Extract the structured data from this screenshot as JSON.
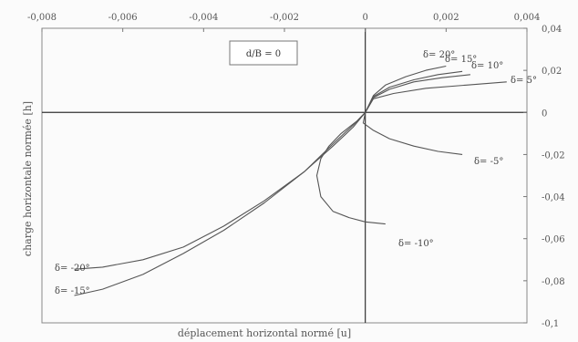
{
  "chart_data": {
    "type": "line",
    "title": "",
    "xlabel": "déplacement horizontal normé [u]",
    "ylabel": "charge horizontale normée [h]",
    "xlim": [
      -0.008,
      0.004
    ],
    "ylim": [
      -0.1,
      0.04
    ],
    "x_ticks": [
      "-0,008",
      "-0,006",
      "-0,004",
      "-0,002",
      "0",
      "0,002",
      "0,004"
    ],
    "y_ticks": [
      "0,04",
      "0,02",
      "0",
      "-0,02",
      "-0,04",
      "-0,06",
      "-0,08",
      "-0,1"
    ],
    "x_tick_values": [
      -0.008,
      -0.006,
      -0.004,
      -0.002,
      0,
      0.002,
      0.004
    ],
    "y_tick_values": [
      0.04,
      0.02,
      0,
      -0.02,
      -0.04,
      -0.06,
      -0.08,
      -0.1
    ],
    "x_axis_position": "top",
    "y_axis_position": "right",
    "grid": false,
    "annotation": "d/B = 0",
    "series": [
      {
        "name": "δ= 20°",
        "x": [
          0,
          0.0002,
          0.0005,
          0.001,
          0.0015,
          0.002
        ],
        "y": [
          0,
          0.008,
          0.013,
          0.017,
          0.02,
          0.022
        ]
      },
      {
        "name": "δ= 15°",
        "x": [
          0,
          0.0002,
          0.0006,
          0.0012,
          0.0018,
          0.0024
        ],
        "y": [
          0,
          0.0075,
          0.012,
          0.0155,
          0.018,
          0.0195
        ]
      },
      {
        "name": "δ= 10°",
        "x": [
          0,
          0.0002,
          0.0006,
          0.0012,
          0.0019,
          0.0026
        ],
        "y": [
          0,
          0.007,
          0.011,
          0.0145,
          0.0165,
          0.018
        ]
      },
      {
        "name": "δ= 5°",
        "x": [
          0,
          0.0002,
          0.0007,
          0.0015,
          0.0025,
          0.0035
        ],
        "y": [
          0,
          0.0065,
          0.009,
          0.0115,
          0.013,
          0.0145
        ]
      },
      {
        "name": "δ= -5°",
        "x": [
          0,
          -5e-05,
          0.0002,
          0.0006,
          0.0012,
          0.0018,
          0.0024
        ],
        "y": [
          0,
          -0.005,
          -0.0085,
          -0.0125,
          -0.016,
          -0.0185,
          -0.02
        ]
      },
      {
        "name": "δ= -10°",
        "x": [
          0,
          -0.0002,
          -0.0006,
          -0.0009,
          -0.0011,
          -0.0012,
          -0.0011,
          -0.0008,
          -0.0004,
          0,
          0.0005
        ],
        "y": [
          0,
          -0.004,
          -0.01,
          -0.016,
          -0.022,
          -0.03,
          -0.04,
          -0.047,
          -0.05,
          -0.052,
          -0.053
        ]
      },
      {
        "name": "δ= -20°",
        "x": [
          0,
          -0.0003,
          -0.0008,
          -0.0015,
          -0.0025,
          -0.0035,
          -0.0045,
          -0.0055,
          -0.0065,
          -0.0072
        ],
        "y": [
          0,
          -0.007,
          -0.016,
          -0.028,
          -0.042,
          -0.054,
          -0.064,
          -0.07,
          -0.0735,
          -0.0745
        ]
      },
      {
        "name": "δ= -15°",
        "x": [
          0,
          -0.0003,
          -0.0008,
          -0.0015,
          -0.0025,
          -0.0035,
          -0.0045,
          -0.0055,
          -0.0065,
          -0.0072
        ],
        "y": [
          0,
          -0.006,
          -0.015,
          -0.028,
          -0.043,
          -0.056,
          -0.067,
          -0.077,
          -0.084,
          -0.087
        ]
      }
    ]
  }
}
